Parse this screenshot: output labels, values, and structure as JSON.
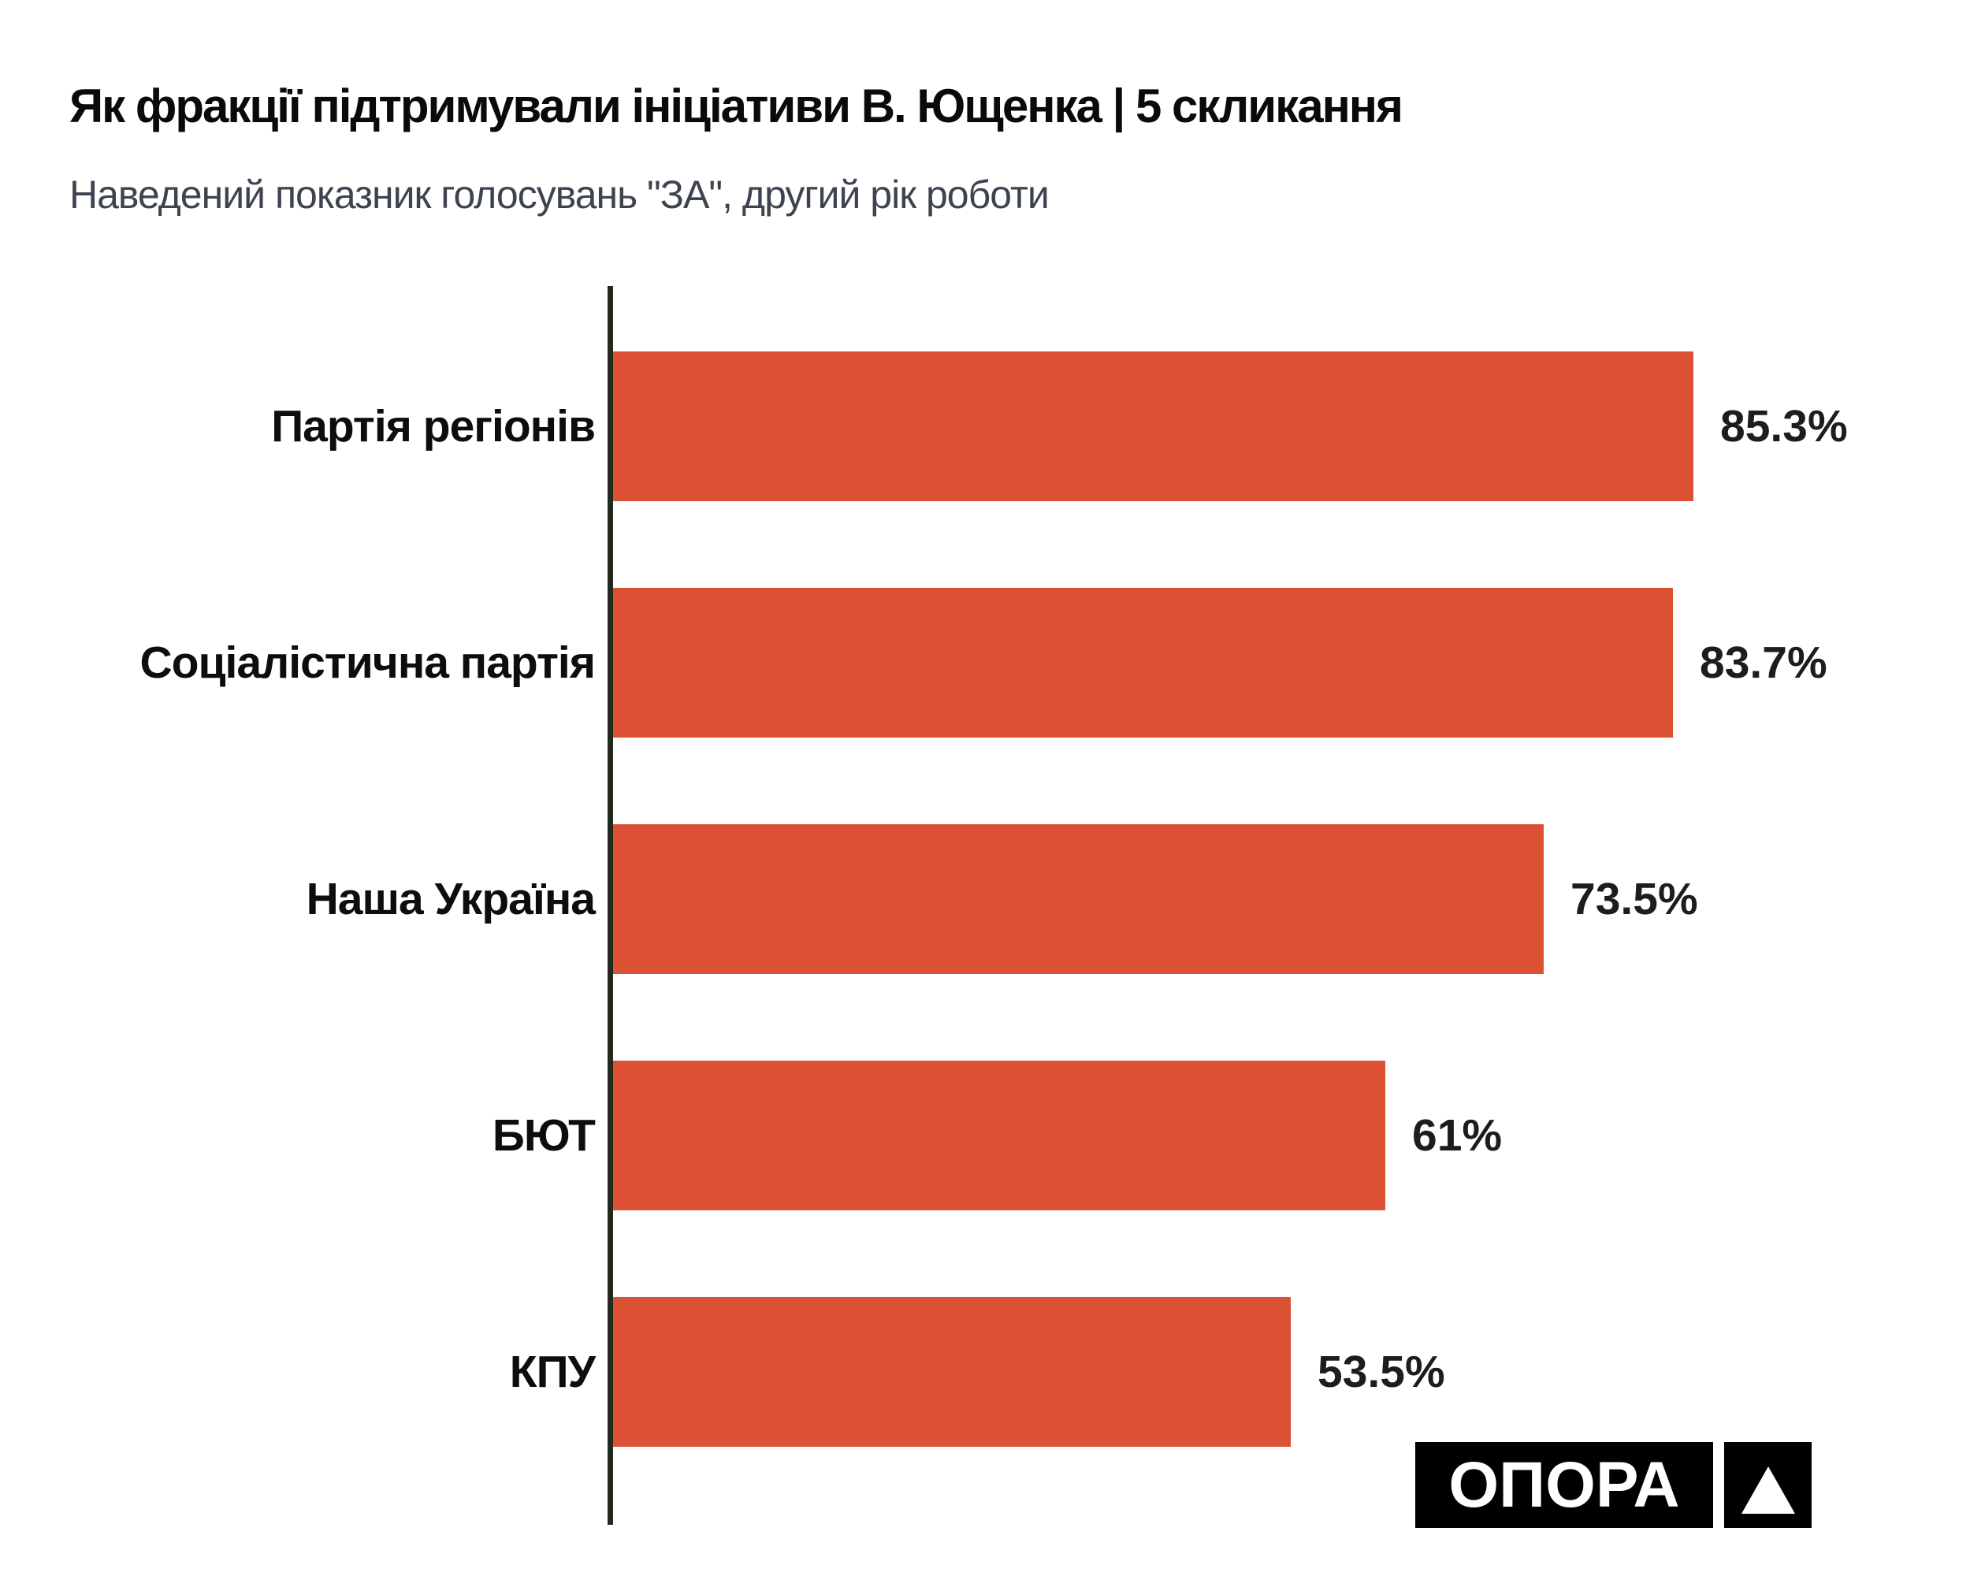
{
  "title": "Як фракції підтримували ініціативи В. Ющенка | 5 скликання",
  "subtitle": "Наведений показник голосувань \"ЗА\", другий рік роботи",
  "chart_data": {
    "type": "bar",
    "orientation": "horizontal",
    "title": "Як фракції підтримували ініціативи В. Ющенка | 5 скликання",
    "subtitle": "Наведений показник голосувань \"ЗА\", другий рік роботи",
    "categories": [
      "Партія регіонів",
      "Соціалістична партія",
      "Наша Україна",
      "БЮТ",
      "КПУ"
    ],
    "values": [
      85.3,
      83.7,
      73.5,
      61,
      53.5
    ],
    "value_labels": [
      "85.3%",
      "83.7%",
      "73.5%",
      "61%",
      "53.5%"
    ],
    "xlim": [
      0,
      100
    ],
    "grid": false,
    "legend": false,
    "bar_color": "#dc5033",
    "axis_color": "#23291f",
    "label_color": "#0d0d0d",
    "value_color": "#1d1d1d"
  },
  "logo": {
    "text": "ОПОРА",
    "icon": "triangle-up-icon",
    "bg_color": "#000000",
    "fg_color": "#ffffff"
  }
}
